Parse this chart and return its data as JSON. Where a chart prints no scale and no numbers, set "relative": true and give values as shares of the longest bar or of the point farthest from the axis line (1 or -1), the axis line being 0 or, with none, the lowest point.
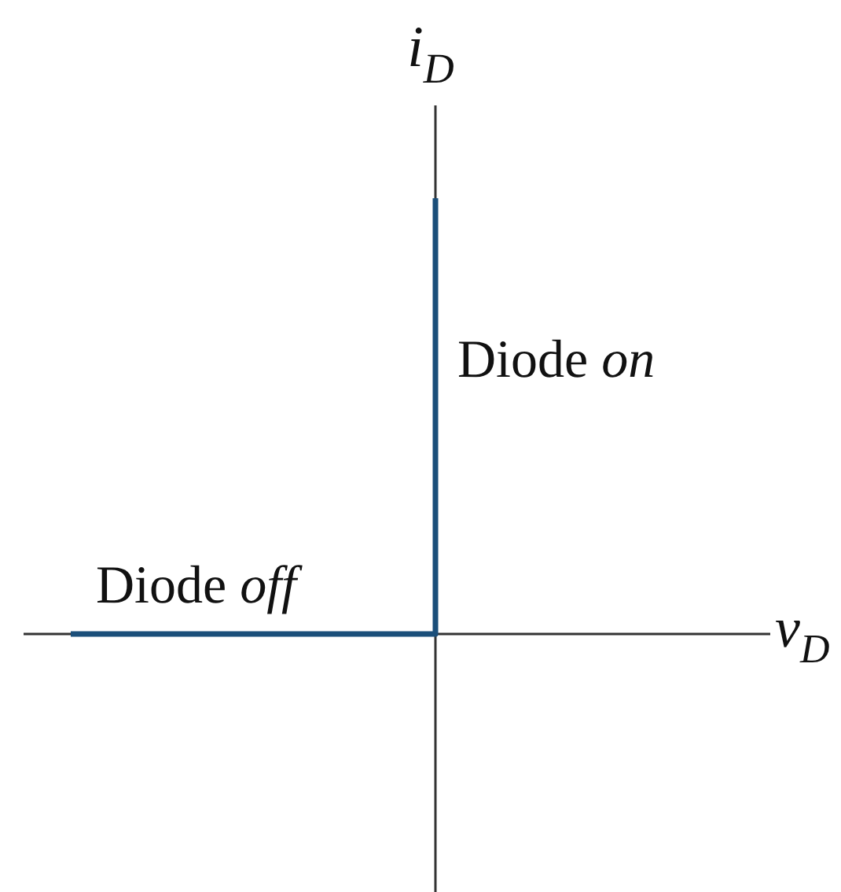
{
  "chart_data": {
    "type": "step",
    "relative": true,
    "xlabel": "v$_{D}$",
    "ylabel": "i$_{D}$",
    "categories": [
      null,
      null
    ],
    "values": [
      0,
      1
    ],
    "color": "#1b4f7a",
    "annotations": [
      "Diode on",
      "Diode off"
    ]
  }
}
